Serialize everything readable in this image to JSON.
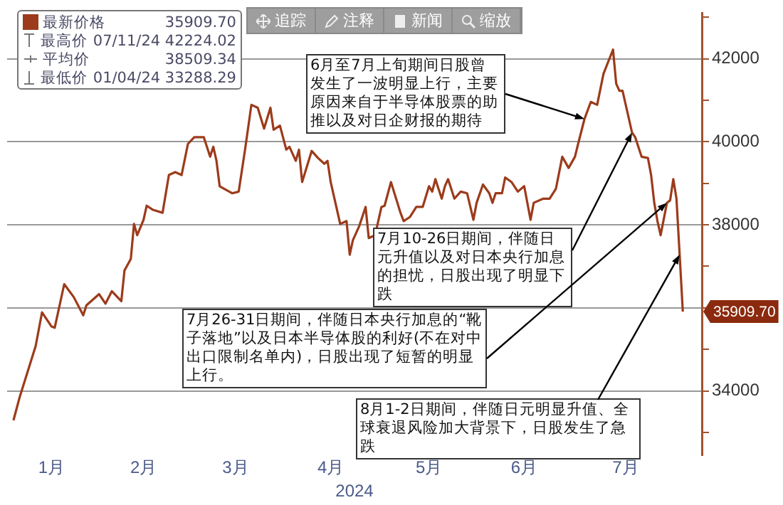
{
  "chart_data": {
    "type": "line",
    "xlabel": "2024",
    "x": [
      "2024-01-04",
      "2024-01-06",
      "2024-01-11",
      "2024-01-13",
      "2024-01-16",
      "2024-01-17",
      "2024-01-20",
      "2024-01-23",
      "2024-01-26",
      "2024-01-27",
      "2024-01-31",
      "2024-02-02",
      "2024-02-04",
      "2024-02-07",
      "2024-02-08",
      "2024-02-10",
      "2024-02-11",
      "2024-02-12",
      "2024-02-14",
      "2024-02-15",
      "2024-02-17",
      "2024-02-20",
      "2024-02-22",
      "2024-02-24",
      "2024-02-26",
      "2024-02-28",
      "2024-03-01",
      "2024-03-04",
      "2024-03-06",
      "2024-03-07",
      "2024-03-08",
      "2024-03-09",
      "2024-03-12",
      "2024-03-13",
      "2024-03-15",
      "2024-03-17",
      "2024-03-19",
      "2024-03-21",
      "2024-03-23",
      "2024-03-25",
      "2024-03-26",
      "2024-03-28",
      "2024-03-30",
      "2024-03-31",
      "2024-04-02",
      "2024-04-03",
      "2024-04-04",
      "2024-04-07",
      "2024-04-09",
      "2024-04-11",
      "2024-04-12",
      "2024-04-13",
      "2024-04-16",
      "2024-04-18",
      "2024-04-19",
      "2024-04-20",
      "2024-04-22",
      "2024-04-24",
      "2024-04-25",
      "2024-04-27",
      "2024-04-29",
      "2024-04-30",
      "2024-05-02",
      "2024-05-05",
      "2024-05-06",
      "2024-05-08",
      "2024-05-10",
      "2024-05-12",
      "2024-05-14",
      "2024-05-15",
      "2024-05-16",
      "2024-05-18",
      "2024-05-19",
      "2024-05-20",
      "2024-05-22",
      "2024-05-24",
      "2024-05-26",
      "2024-05-28",
      "2024-05-29",
      "2024-05-31",
      "2024-06-02",
      "2024-06-03",
      "2024-06-04",
      "2024-06-06",
      "2024-06-07",
      "2024-06-09",
      "2024-06-11",
      "2024-06-13",
      "2024-06-15",
      "2024-06-16",
      "2024-06-19",
      "2024-06-21",
      "2024-06-23",
      "2024-06-25",
      "2024-06-27",
      "2024-06-29",
      "2024-06-30",
      "2024-07-02",
      "2024-07-04",
      "2024-07-06",
      "2024-07-08",
      "2024-07-11",
      "2024-07-12",
      "2024-07-13",
      "2024-07-14",
      "2024-07-17",
      "2024-07-18",
      "2024-07-20",
      "2024-07-22",
      "2024-07-23",
      "2024-07-24",
      "2024-07-25",
      "2024-07-26",
      "2024-07-28",
      "2024-07-29",
      "2024-07-30",
      "2024-07-31",
      "2024-08-01",
      "2024-08-02"
    ],
    "series": [
      {
        "name": "最新价格",
        "color": "#9c3b1b",
        "values": [
          33290,
          33860,
          35080,
          35890,
          35550,
          35520,
          36570,
          36260,
          35820,
          36060,
          36330,
          36100,
          36400,
          36160,
          36900,
          37180,
          38020,
          37750,
          38120,
          38460,
          38360,
          38290,
          39200,
          39270,
          39200,
          39950,
          40110,
          40110,
          39640,
          39880,
          39540,
          38930,
          38800,
          38760,
          38800,
          39810,
          40890,
          40820,
          40320,
          40820,
          40290,
          40390,
          39810,
          39880,
          39540,
          39810,
          39030,
          39780,
          39610,
          39470,
          39540,
          39030,
          38020,
          38090,
          37280,
          37630,
          37970,
          38430,
          37680,
          37750,
          38430,
          38460,
          39030,
          38290,
          38090,
          38190,
          38430,
          38430,
          38930,
          38800,
          39100,
          38630,
          38930,
          39100,
          38630,
          38800,
          38760,
          38120,
          38530,
          38970,
          38760,
          38530,
          38760,
          38760,
          39140,
          39030,
          38800,
          38930,
          38120,
          38530,
          38630,
          38630,
          38870,
          39640,
          39370,
          39640,
          39950,
          40550,
          40960,
          40890,
          41640,
          42220,
          41400,
          41230,
          41230,
          40220,
          40110,
          39640,
          39610,
          39200,
          38530,
          38090,
          37750,
          38530,
          38590,
          39100,
          38630,
          37280,
          35910
        ]
      }
    ],
    "xlim": [
      "2024-01-02",
      "2024-08-08"
    ],
    "xticks": [
      {
        "value": "2024-01-16",
        "label": "1月"
      },
      {
        "value": "2024-02-14",
        "label": "2月"
      },
      {
        "value": "2024-03-14",
        "label": "3月"
      },
      {
        "value": "2024-04-13",
        "label": "4月"
      },
      {
        "value": "2024-05-14",
        "label": "5月"
      },
      {
        "value": "2024-06-13",
        "label": "6月"
      },
      {
        "value": "2024-07-15",
        "label": "7月"
      }
    ],
    "ylim": [
      32450,
      43100
    ],
    "yticks": [
      {
        "value": 33000,
        "label": null
      },
      34000,
      {
        "value": 35000,
        "label": null
      },
      {
        "value": 36000,
        "label": null
      },
      {
        "value": 37000,
        "label": null
      },
      38000,
      {
        "value": 39000,
        "label": null
      },
      40000,
      {
        "value": 41000,
        "label": null
      },
      42000,
      {
        "value": 43000,
        "label": null
      }
    ],
    "grid": "y",
    "legend": "top left",
    "annotations": [
      "35909.70",
      "最高价 07/11/24 42224.02",
      "平均价 38509.34",
      "最低价 01/04/24 33288.29",
      {
        "text": "6月至7月上旬期间日股曾发生了一波明显上行，主要原因来自于半导体股票的助推以及对日企财报的期待",
        "x": "2024-07-02",
        "y": 40550
      },
      {
        "text": "7月10-26日期间，伴随日元升值以及对日本央行加息的担忧，日股出现了明显下跌",
        "x": "2024-07-17",
        "y": 40220
      },
      {
        "text": "7月26-31日期间，伴随日本央行加息的“靴子落地”以及日本半导体股的利好(不在对中出口限制名单内)，日股出现了短暂的明显上行。",
        "x": "2024-07-28",
        "y": 38530
      },
      {
        "text": "8月1-2日期间，伴随日元明显升值、全球衰退风险加大背景下，日股发生了急跌",
        "x": "2024-08-01",
        "y": 37280
      },
      {
        "text": "35909.70",
        "x": "2024-08-02",
        "y": 35910
      },
      "追踪",
      "注释",
      "新闻",
      "缩放"
    ]
  }
}
